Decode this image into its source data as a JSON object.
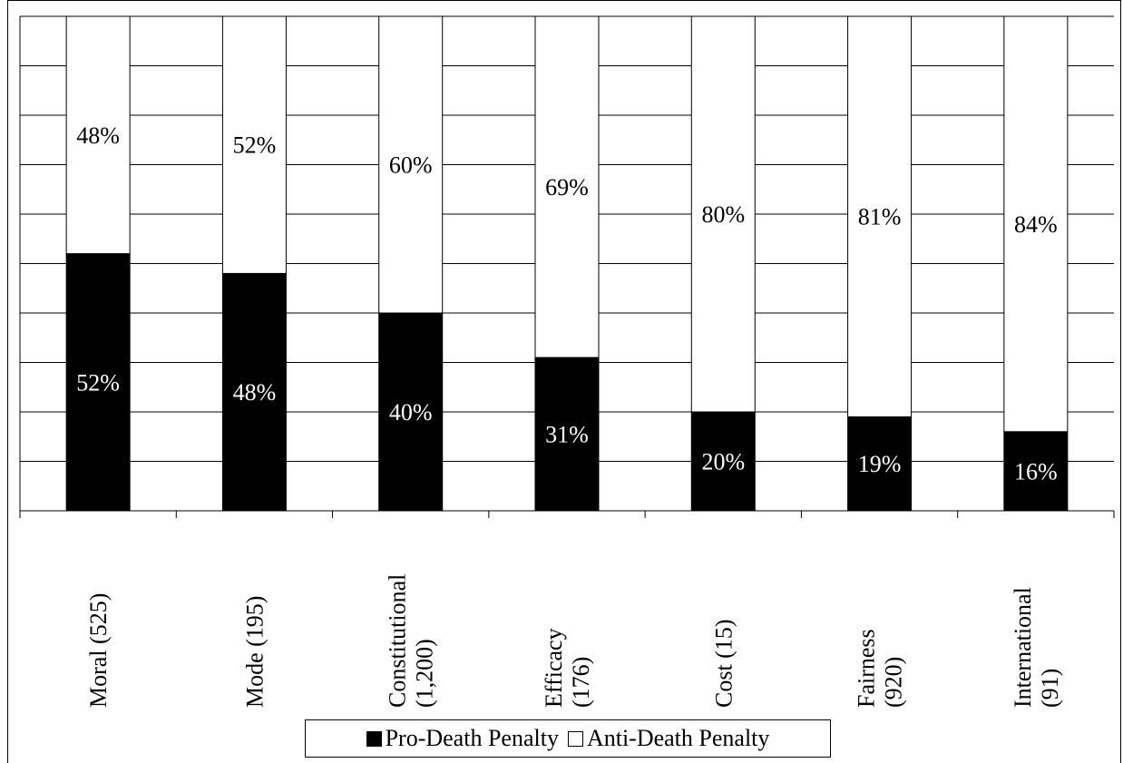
{
  "chart_data": {
    "type": "bar",
    "stacked": true,
    "percent_stacked": true,
    "categories": [
      "Moral (525)",
      "Mode (195)",
      "Constitutional (1,200)",
      "Efficacy (176)",
      "Cost (15)",
      "Fairness (920)",
      "International (91)"
    ],
    "category_lines": [
      [
        "Moral (525)"
      ],
      [
        "Mode (195)"
      ],
      [
        "Constitutional",
        "(1,200)"
      ],
      [
        "Efficacy",
        "(176)"
      ],
      [
        "Cost (15)"
      ],
      [
        "Fairness",
        "(920)"
      ],
      [
        "International",
        "(91)"
      ]
    ],
    "series": [
      {
        "name": "Pro-Death Penalty",
        "values": [
          52,
          48,
          40,
          31,
          20,
          19,
          16
        ],
        "labels": [
          "52%",
          "48%",
          "40%",
          "31%",
          "20%",
          "19%",
          "16%"
        ],
        "color": "#000000"
      },
      {
        "name": "Anti-Death Penalty",
        "values": [
          48,
          52,
          60,
          69,
          80,
          81,
          84
        ],
        "labels": [
          "48%",
          "52%",
          "60%",
          "69%",
          "80%",
          "81%",
          "84%"
        ],
        "color": "#ffffff"
      }
    ],
    "ylim": [
      0,
      100
    ],
    "grid": true,
    "legend_position": "bottom",
    "title": "",
    "xlabel": "",
    "ylabel": ""
  }
}
